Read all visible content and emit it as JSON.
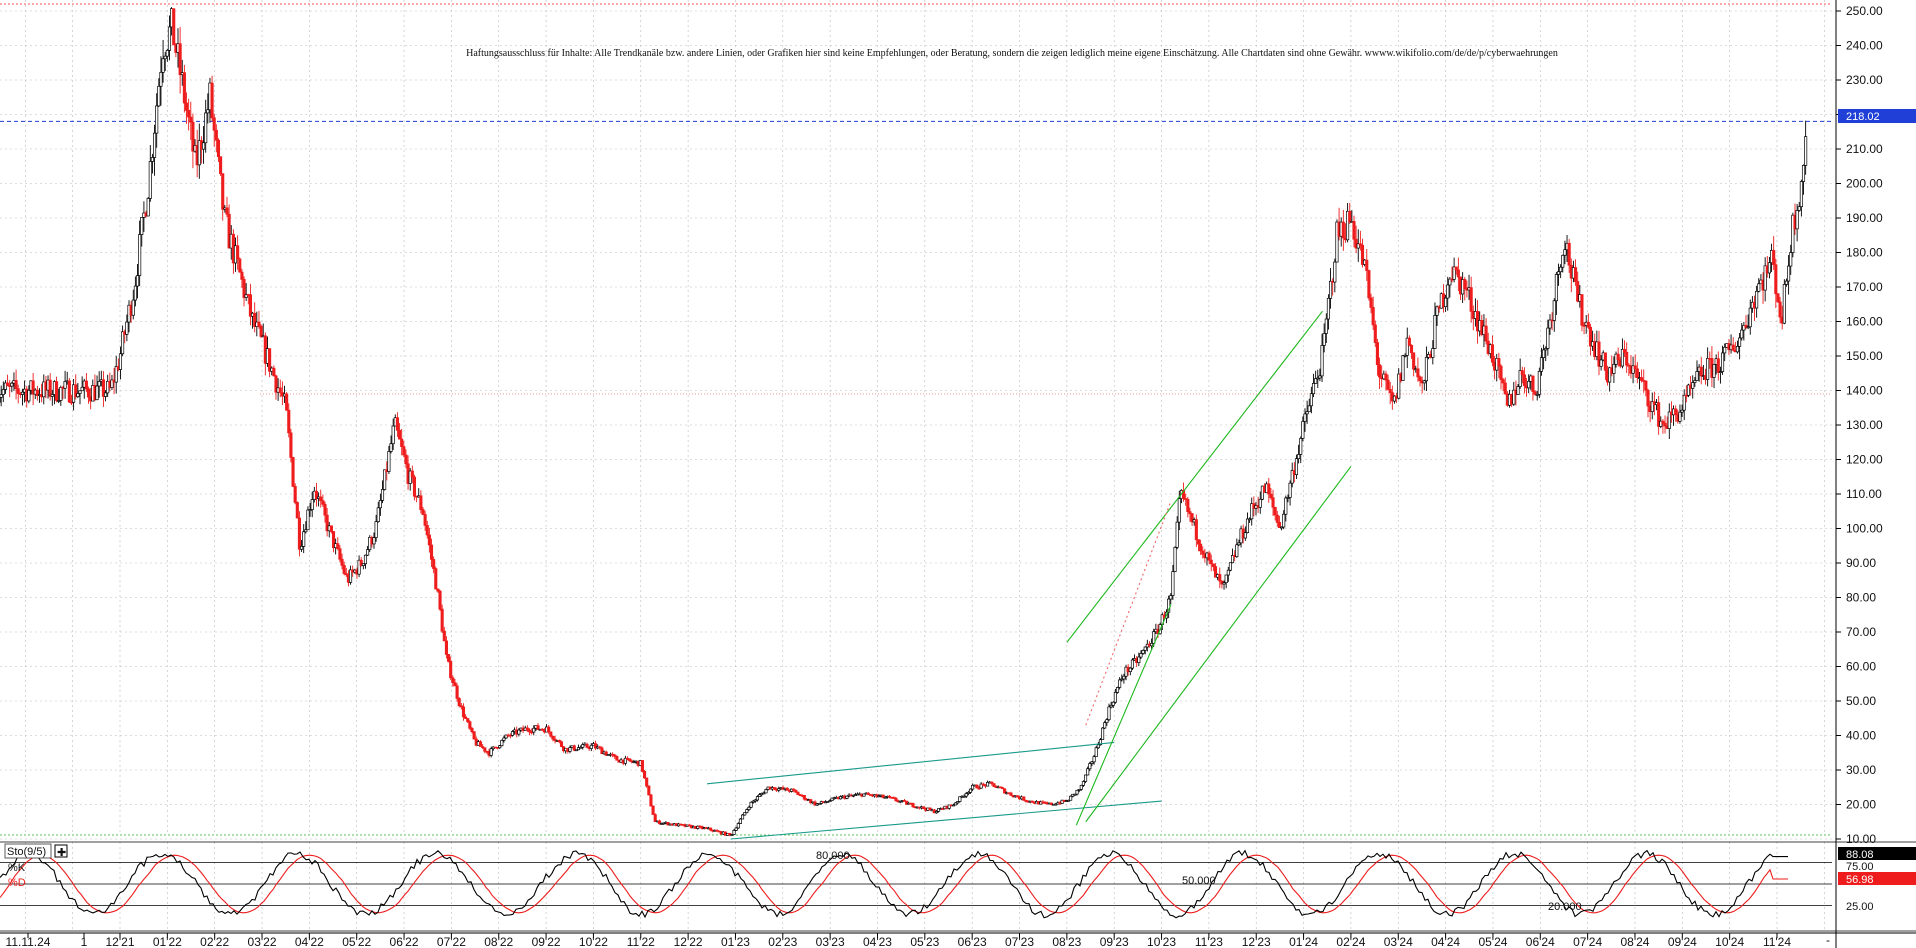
{
  "disclaimer": "Haftungsausschluss für Inhalte: Alle Trendkanäle bzw. andere Linien, oder Grafiken hier sind keine Empfehlungen, oder Beratung, sondern die zeigen lediglich meine eigene Einschätzung. Alle Chartdaten sind ohne Gewähr. wwww.wikifolio.com/de/de/p/cyberwaehrungen",
  "last_price_label": "218.02",
  "stoch": {
    "title": "Sto(9/5)",
    "k_label": "%K",
    "d_label": "%D",
    "k_value": "88.08",
    "d_value": "56.98",
    "level_80_label": "80.000",
    "level_50_label": "50.000",
    "level_20_label": "20.000",
    "tick_labels": [
      "75.00",
      "50.00",
      "25.00"
    ]
  },
  "colors": {
    "up_candle": "#000000",
    "down_candle": "#ee1c1c",
    "price_line": "#1f3fd6",
    "channel_green": "#1db81d",
    "channel_teal": "#1a9a8a",
    "k_line": "#000000",
    "d_line": "#ee1c1c",
    "grid": "#bbbbbb"
  },
  "chart_data": [
    {
      "type": "candlestick",
      "title": "",
      "y_ticks": [
        "250.00",
        "240.00",
        "230.00",
        "220.00",
        "210.00",
        "200.00",
        "190.00",
        "180.00",
        "170.00",
        "160.00",
        "150.00",
        "140.00",
        "130.00",
        "120.00",
        "110.00",
        "100.00",
        "90.00",
        "80.00",
        "70.00",
        "60.00",
        "50.00",
        "40.00",
        "30.00",
        "20.00",
        "10.00"
      ],
      "ylim": [
        5,
        253
      ],
      "x_ticks": [
        "11.11.24",
        "1",
        "12'21",
        "01'22",
        "02'22",
        "03'22",
        "04'22",
        "05'22",
        "06'22",
        "07'22",
        "08'22",
        "09'22",
        "10'22",
        "11'22",
        "12'22",
        "01'23",
        "02'23",
        "03'23",
        "04'23",
        "05'23",
        "06'23",
        "07'23",
        "08'23",
        "09'23",
        "10'23",
        "11'23",
        "12'23",
        "01'24",
        "02'24",
        "03'24",
        "04'24",
        "05'24",
        "06'24",
        "07'24",
        "08'24",
        "09'24",
        "10'24",
        "11'24"
      ],
      "grid": true,
      "price_anchors": [
        {
          "month": -0.2,
          "price": 140
        },
        {
          "month": 0.0,
          "price": 150
        },
        {
          "month": 0.3,
          "price": 170
        },
        {
          "month": 0.6,
          "price": 200
        },
        {
          "month": 0.9,
          "price": 240
        },
        {
          "month": 1.1,
          "price": 245
        },
        {
          "month": 1.3,
          "price": 230
        },
        {
          "month": 1.6,
          "price": 205
        },
        {
          "month": 1.9,
          "price": 225
        },
        {
          "month": 2.2,
          "price": 190
        },
        {
          "month": 2.5,
          "price": 175
        },
        {
          "month": 2.8,
          "price": 160
        },
        {
          "month": 3.1,
          "price": 150
        },
        {
          "month": 3.5,
          "price": 135
        },
        {
          "month": 3.8,
          "price": 95
        },
        {
          "month": 4.1,
          "price": 112
        },
        {
          "month": 4.4,
          "price": 100
        },
        {
          "month": 4.8,
          "price": 85
        },
        {
          "month": 5.1,
          "price": 90
        },
        {
          "month": 5.4,
          "price": 100
        },
        {
          "month": 5.8,
          "price": 130
        },
        {
          "month": 6.1,
          "price": 115
        },
        {
          "month": 6.4,
          "price": 105
        },
        {
          "month": 6.7,
          "price": 82
        },
        {
          "month": 6.9,
          "price": 62
        },
        {
          "month": 7.2,
          "price": 48
        },
        {
          "month": 7.5,
          "price": 38
        },
        {
          "month": 7.8,
          "price": 35
        },
        {
          "month": 8.2,
          "price": 40
        },
        {
          "month": 8.6,
          "price": 42
        },
        {
          "month": 9.0,
          "price": 42
        },
        {
          "month": 9.4,
          "price": 36
        },
        {
          "month": 10.0,
          "price": 37
        },
        {
          "month": 10.5,
          "price": 33
        },
        {
          "month": 11.0,
          "price": 32
        },
        {
          "month": 11.3,
          "price": 15
        },
        {
          "month": 11.8,
          "price": 14
        },
        {
          "month": 12.4,
          "price": 13
        },
        {
          "month": 12.9,
          "price": 11
        },
        {
          "month": 13.3,
          "price": 20
        },
        {
          "month": 13.7,
          "price": 25
        },
        {
          "month": 14.2,
          "price": 24
        },
        {
          "month": 14.7,
          "price": 20
        },
        {
          "month": 15.2,
          "price": 22
        },
        {
          "month": 15.7,
          "price": 23
        },
        {
          "month": 16.2,
          "price": 22
        },
        {
          "month": 16.7,
          "price": 20
        },
        {
          "month": 17.2,
          "price": 18
        },
        {
          "month": 17.6,
          "price": 20
        },
        {
          "month": 18.0,
          "price": 25
        },
        {
          "month": 18.4,
          "price": 26
        },
        {
          "month": 18.8,
          "price": 23
        },
        {
          "month": 19.2,
          "price": 21
        },
        {
          "month": 19.6,
          "price": 20
        },
        {
          "month": 20.0,
          "price": 21
        },
        {
          "month": 20.3,
          "price": 25
        },
        {
          "month": 20.6,
          "price": 35
        },
        {
          "month": 20.9,
          "price": 48
        },
        {
          "month": 21.2,
          "price": 58
        },
        {
          "month": 21.5,
          "price": 62
        },
        {
          "month": 21.9,
          "price": 70
        },
        {
          "month": 22.2,
          "price": 80
        },
        {
          "month": 22.4,
          "price": 110
        },
        {
          "month": 22.7,
          "price": 100
        },
        {
          "month": 23.0,
          "price": 90
        },
        {
          "month": 23.3,
          "price": 82
        },
        {
          "month": 23.6,
          "price": 95
        },
        {
          "month": 23.9,
          "price": 105
        },
        {
          "month": 24.2,
          "price": 112
        },
        {
          "month": 24.5,
          "price": 100
        },
        {
          "month": 24.8,
          "price": 118
        },
        {
          "month": 25.1,
          "price": 135
        },
        {
          "month": 25.4,
          "price": 150
        },
        {
          "month": 25.7,
          "price": 185
        },
        {
          "month": 26.0,
          "price": 190
        },
        {
          "month": 26.3,
          "price": 175
        },
        {
          "month": 26.6,
          "price": 145
        },
        {
          "month": 26.9,
          "price": 135
        },
        {
          "month": 27.2,
          "price": 155
        },
        {
          "month": 27.5,
          "price": 140
        },
        {
          "month": 27.8,
          "price": 160
        },
        {
          "month": 28.1,
          "price": 175
        },
        {
          "month": 28.4,
          "price": 170
        },
        {
          "month": 28.7,
          "price": 160
        },
        {
          "month": 29.0,
          "price": 150
        },
        {
          "month": 29.3,
          "price": 135
        },
        {
          "month": 29.6,
          "price": 145
        },
        {
          "month": 29.9,
          "price": 140
        },
        {
          "month": 30.2,
          "price": 160
        },
        {
          "month": 30.5,
          "price": 185
        },
        {
          "month": 30.8,
          "price": 165
        },
        {
          "month": 31.1,
          "price": 155
        },
        {
          "month": 31.4,
          "price": 145
        },
        {
          "month": 31.8,
          "price": 150
        },
        {
          "month": 32.2,
          "price": 140
        },
        {
          "month": 32.6,
          "price": 130
        },
        {
          "month": 33.0,
          "price": 135
        },
        {
          "month": 33.4,
          "price": 145
        },
        {
          "month": 33.8,
          "price": 148
        },
        {
          "month": 34.2,
          "price": 155
        },
        {
          "month": 34.6,
          "price": 170
        },
        {
          "month": 34.9,
          "price": 178
        },
        {
          "month": 35.1,
          "price": 160
        },
        {
          "month": 35.3,
          "price": 185
        },
        {
          "month": 35.5,
          "price": 200
        },
        {
          "month": 35.65,
          "price": 218
        }
      ],
      "last_price": 218.02
    },
    {
      "type": "line",
      "title": "Sto(9/5)",
      "series": [
        {
          "name": "%K",
          "last_value": 88.08
        },
        {
          "name": "%D",
          "last_value": 56.98
        }
      ],
      "y_ticks": [
        "75.00",
        "50.00",
        "25.00"
      ],
      "levels": [
        80,
        50,
        20
      ],
      "ylim": [
        0,
        100
      ]
    }
  ]
}
